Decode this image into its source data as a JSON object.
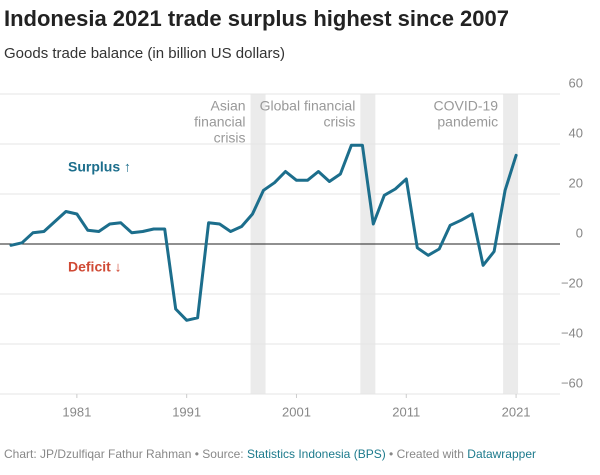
{
  "chart_data": {
    "type": "line",
    "title": "Indonesia 2021 trade surplus highest since 2007",
    "subtitle": "Goods trade balance (in billion US dollars)",
    "x": [
      1975,
      1976,
      1977,
      1978,
      1979,
      1980,
      1981,
      1982,
      1983,
      1984,
      1985,
      1986,
      1987,
      1988,
      1989,
      1990,
      1991,
      1992,
      1993,
      1994,
      1995,
      1996,
      1997,
      1998,
      1999,
      2000,
      2001,
      2002,
      2003,
      2004,
      2005,
      2006,
      2007,
      2008,
      2009,
      2010,
      2011,
      2012,
      2013,
      2014,
      2015,
      2016,
      2017,
      2018,
      2019,
      2020,
      2021
    ],
    "values": [
      -0.5,
      0.5,
      4.5,
      5,
      9,
      13,
      12,
      5.5,
      5,
      8,
      8.5,
      4.5,
      5,
      6,
      6,
      -26,
      -30.5,
      -29.5,
      8.5,
      8,
      5,
      7,
      12,
      21.5,
      24.5,
      29,
      25.5,
      25.5,
      29,
      25,
      28,
      39.5,
      39.5,
      8,
      19.5,
      22,
      26,
      -1.5,
      -4.5,
      -2,
      7.5,
      9.5,
      12,
      -8.5,
      -3,
      21.5,
      35.5
    ],
    "color": "#1c6e8c",
    "xlim": [
      1974,
      2025
    ],
    "xticks": [
      1981,
      1991,
      2001,
      2011,
      2021
    ],
    "ylim": [
      -60,
      60
    ],
    "yticks": [
      {
        "value": -60,
        "label": "−60"
      },
      {
        "value": -40,
        "label": "−40"
      },
      {
        "value": -20,
        "label": "−20"
      },
      0,
      20,
      40,
      60
    ],
    "grid": true,
    "highlights": [
      {
        "from": 1997,
        "to": 1998,
        "label": [
          "Asian",
          "financial",
          "crisis"
        ]
      },
      {
        "from": 2007,
        "to": 2008,
        "label": [
          "Global financial",
          "crisis"
        ]
      },
      {
        "from": 2020,
        "to": 2021,
        "label": [
          "COVID-19",
          "pandemic"
        ]
      }
    ],
    "annotations": {
      "surplus": "Surplus ↑",
      "deficit": "Deficit ↓"
    },
    "footer": [
      "Chart: JP/Dzulfiqar Fathur Rahman • Source: ",
      "Statistics Indonesia (BPS)",
      " • Created with ",
      "Datawrapper"
    ]
  }
}
